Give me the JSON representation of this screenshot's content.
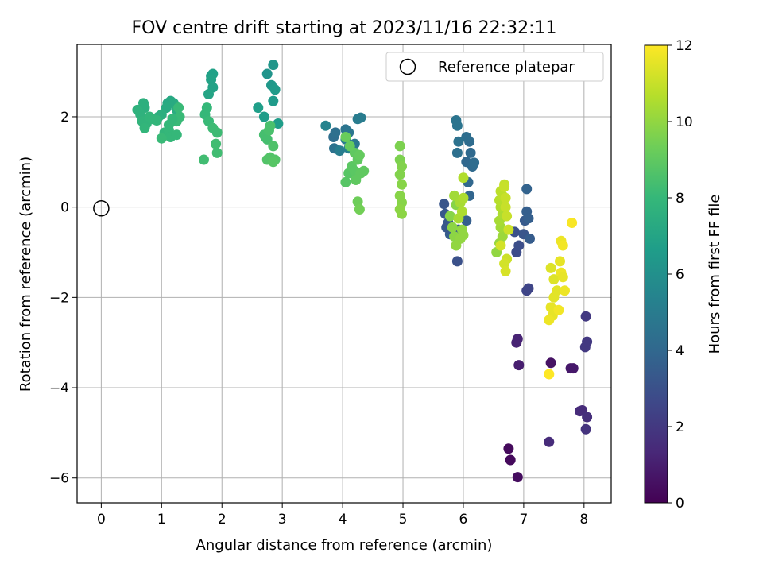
{
  "chart_data": {
    "type": "scatter",
    "title": "FOV centre drift starting at 2023/11/16 22:32:11",
    "xlabel": "Angular distance from reference (arcmin)",
    "ylabel": "Rotation from reference (arcmin)",
    "xlim": [
      -0.4,
      8.45
    ],
    "ylim": [
      -6.55,
      3.6
    ],
    "x_ticks": [
      0,
      1,
      2,
      3,
      4,
      5,
      6,
      7,
      8
    ],
    "x_tick_labels": [
      "0",
      "1",
      "2",
      "3",
      "4",
      "5",
      "6",
      "7",
      "8"
    ],
    "y_ticks": [
      -6,
      -4,
      -2,
      0,
      2
    ],
    "y_tick_labels": [
      "−6",
      "−4",
      "−2",
      "0",
      "2"
    ],
    "grid": true,
    "legend": {
      "position": "top-right",
      "entries": [
        "Reference platepar"
      ]
    },
    "reference_point": {
      "x": 0,
      "y": 0
    },
    "colorbar": {
      "label": "Hours from first FF file",
      "min": 0,
      "max": 12,
      "ticks": [
        0,
        2,
        4,
        6,
        8,
        10,
        12
      ],
      "tick_labels": [
        "0",
        "2",
        "4",
        "6",
        "8",
        "10",
        "12"
      ],
      "colormap": "viridis"
    },
    "colormap_stops": [
      "#440154",
      "#482878",
      "#3e4989",
      "#31688e",
      "#26828e",
      "#1f9e89",
      "#35b779",
      "#6ece58",
      "#b5de2b",
      "#fde725"
    ],
    "points": [
      [
        6.75,
        -5.35,
        0.3
      ],
      [
        6.78,
        -5.6,
        0.3
      ],
      [
        6.9,
        -5.98,
        0.4
      ],
      [
        7.42,
        -5.2,
        1.5
      ],
      [
        7.45,
        -3.45,
        0.6
      ],
      [
        7.78,
        -3.57,
        0.8
      ],
      [
        7.82,
        -3.57,
        0.8
      ],
      [
        6.88,
        -3.0,
        1.2
      ],
      [
        6.9,
        -2.92,
        1.2
      ],
      [
        6.92,
        -3.5,
        1.0
      ],
      [
        7.93,
        -4.52,
        1.5
      ],
      [
        7.97,
        -4.5,
        1.5
      ],
      [
        8.05,
        -4.65,
        1.6
      ],
      [
        8.03,
        -4.92,
        1.8
      ],
      [
        8.02,
        -3.1,
        2.0
      ],
      [
        8.05,
        -2.98,
        2.0
      ],
      [
        8.03,
        -2.42,
        2.0
      ],
      [
        7.05,
        -1.85,
        2.5
      ],
      [
        7.08,
        -1.8,
        2.5
      ],
      [
        6.88,
        -1.0,
        2.8
      ],
      [
        6.92,
        -0.85,
        2.9
      ],
      [
        6.85,
        -0.55,
        3.0
      ],
      [
        7.0,
        -0.6,
        3.2
      ],
      [
        7.02,
        -0.3,
        3.4
      ],
      [
        7.1,
        -0.7,
        3.5
      ],
      [
        7.05,
        -0.1,
        3.6
      ],
      [
        7.08,
        -0.25,
        3.6
      ],
      [
        7.05,
        0.4,
        3.8
      ],
      [
        5.68,
        0.07,
        3.2
      ],
      [
        5.7,
        -0.15,
        3.3
      ],
      [
        5.75,
        -0.35,
        3.4
      ],
      [
        5.78,
        -0.6,
        3.5
      ],
      [
        5.72,
        -0.45,
        3.3
      ],
      [
        5.9,
        -1.2,
        3.0
      ],
      [
        5.92,
        -0.5,
        3.4
      ],
      [
        6.05,
        -0.3,
        3.6
      ],
      [
        6.1,
        0.25,
        3.9
      ],
      [
        6.08,
        0.55,
        4.0
      ],
      [
        6.05,
        1.0,
        4.0
      ],
      [
        6.12,
        1.2,
        4.1
      ],
      [
        6.1,
        1.45,
        4.2
      ],
      [
        6.05,
        1.55,
        4.3
      ],
      [
        6.15,
        0.9,
        4.1
      ],
      [
        6.18,
        0.98,
        4.2
      ],
      [
        5.88,
        1.92,
        4.6
      ],
      [
        5.9,
        1.8,
        4.6
      ],
      [
        5.92,
        1.45,
        4.5
      ],
      [
        5.9,
        1.2,
        4.4
      ],
      [
        3.85,
        1.55,
        4.3
      ],
      [
        3.88,
        1.65,
        4.4
      ],
      [
        3.86,
        1.3,
        4.5
      ],
      [
        4.05,
        1.72,
        4.6
      ],
      [
        4.1,
        1.65,
        4.7
      ],
      [
        4.2,
        1.4,
        4.8
      ],
      [
        4.25,
        1.95,
        5.0
      ],
      [
        4.3,
        1.98,
        5.0
      ],
      [
        4.05,
        1.5,
        5.1
      ],
      [
        4.1,
        1.3,
        5.3
      ],
      [
        3.95,
        1.25,
        5.1
      ],
      [
        3.72,
        1.8,
        5.4
      ],
      [
        2.75,
        2.95,
        6.2
      ],
      [
        2.85,
        3.15,
        6.3
      ],
      [
        2.82,
        2.7,
        6.4
      ],
      [
        2.88,
        2.6,
        6.5
      ],
      [
        2.85,
        2.35,
        6.5
      ],
      [
        2.93,
        1.85,
        6.6
      ],
      [
        2.7,
        2.0,
        6.6
      ],
      [
        2.6,
        2.2,
        6.7
      ],
      [
        1.82,
        2.9,
        6.8
      ],
      [
        1.85,
        2.95,
        6.8
      ],
      [
        1.82,
        2.82,
        6.9
      ],
      [
        1.85,
        2.65,
        6.9
      ],
      [
        1.78,
        2.5,
        7.0
      ],
      [
        1.1,
        2.3,
        7.2
      ],
      [
        1.15,
        2.35,
        7.2
      ],
      [
        1.2,
        2.3,
        7.3
      ],
      [
        1.08,
        2.2,
        7.3
      ],
      [
        1.25,
        2.15,
        7.4
      ],
      [
        1.0,
        2.05,
        7.5
      ],
      [
        0.95,
        2.0,
        7.5
      ],
      [
        0.7,
        2.3,
        7.6
      ],
      [
        0.72,
        2.2,
        7.6
      ],
      [
        0.6,
        2.15,
        7.7
      ],
      [
        0.65,
        2.05,
        7.7
      ],
      [
        0.68,
        1.9,
        7.8
      ],
      [
        0.75,
        1.85,
        7.8
      ],
      [
        0.72,
        1.75,
        7.9
      ],
      [
        0.8,
        2.0,
        7.9
      ],
      [
        0.85,
        1.95,
        7.9
      ],
      [
        0.92,
        1.92,
        7.9
      ],
      [
        1.05,
        1.65,
        7.9
      ],
      [
        1.12,
        1.7,
        8.0
      ],
      [
        1.15,
        1.55,
        8.0
      ],
      [
        1.25,
        1.6,
        8.0
      ],
      [
        1.25,
        1.9,
        8.1
      ],
      [
        1.3,
        2.0,
        8.1
      ],
      [
        1.28,
        2.2,
        8.1
      ],
      [
        1.0,
        1.52,
        8.1
      ],
      [
        1.12,
        1.82,
        8.0
      ],
      [
        1.18,
        1.95,
        8.0
      ],
      [
        1.72,
        2.05,
        8.0
      ],
      [
        1.75,
        2.2,
        8.0
      ],
      [
        1.78,
        1.9,
        8.1
      ],
      [
        1.85,
        1.75,
        8.2
      ],
      [
        1.92,
        1.65,
        8.2
      ],
      [
        1.9,
        1.4,
        8.3
      ],
      [
        1.92,
        1.2,
        8.3
      ],
      [
        1.7,
        1.05,
        8.3
      ],
      [
        2.72,
        1.55,
        8.4
      ],
      [
        2.7,
        1.6,
        8.4
      ],
      [
        2.75,
        1.5,
        8.4
      ],
      [
        2.8,
        1.8,
        8.5
      ],
      [
        2.78,
        1.7,
        8.5
      ],
      [
        2.85,
        1.35,
        8.6
      ],
      [
        2.8,
        1.1,
        8.7
      ],
      [
        2.75,
        1.05,
        8.7
      ],
      [
        2.88,
        1.05,
        8.7
      ],
      [
        2.85,
        1.0,
        8.8
      ],
      [
        4.05,
        0.55,
        8.8
      ],
      [
        4.1,
        0.75,
        8.8
      ],
      [
        4.15,
        0.9,
        8.9
      ],
      [
        4.2,
        0.8,
        8.9
      ],
      [
        4.22,
        0.6,
        9.0
      ],
      [
        4.3,
        0.75,
        9.0
      ],
      [
        4.35,
        0.8,
        9.0
      ],
      [
        4.25,
        1.05,
        9.0
      ],
      [
        4.2,
        1.2,
        9.0
      ],
      [
        4.28,
        1.15,
        9.1
      ],
      [
        4.12,
        1.35,
        9.1
      ],
      [
        4.05,
        1.55,
        9.2
      ],
      [
        4.25,
        0.12,
        9.3
      ],
      [
        4.28,
        -0.05,
        9.4
      ],
      [
        4.95,
        1.35,
        9.6
      ],
      [
        4.95,
        1.05,
        9.6
      ],
      [
        4.98,
        0.9,
        9.7
      ],
      [
        4.95,
        0.72,
        9.7
      ],
      [
        4.98,
        0.5,
        9.8
      ],
      [
        4.95,
        0.25,
        9.8
      ],
      [
        4.98,
        0.1,
        9.8
      ],
      [
        4.95,
        -0.05,
        9.9
      ],
      [
        4.98,
        -0.15,
        9.9
      ],
      [
        5.88,
        0.05,
        9.8
      ],
      [
        5.78,
        -0.2,
        9.8
      ],
      [
        5.82,
        -0.45,
        9.9
      ],
      [
        5.85,
        -0.65,
        9.9
      ],
      [
        5.88,
        -0.85,
        10.0
      ],
      [
        5.95,
        -0.7,
        10.0
      ],
      [
        5.98,
        -0.5,
        10.0
      ],
      [
        6.0,
        -0.62,
        10.0
      ],
      [
        5.85,
        0.25,
        10.3
      ],
      [
        5.95,
        0.1,
        10.4
      ],
      [
        6.0,
        0.2,
        10.5
      ],
      [
        6.0,
        0.65,
        10.6
      ],
      [
        5.92,
        -0.25,
        10.4
      ],
      [
        5.98,
        -0.1,
        10.5
      ],
      [
        6.55,
        -1.0,
        10.0
      ],
      [
        6.6,
        -0.8,
        10.1
      ],
      [
        6.65,
        -0.65,
        10.2
      ],
      [
        6.62,
        -0.45,
        10.3
      ],
      [
        6.6,
        -0.3,
        10.4
      ],
      [
        6.65,
        -0.15,
        10.5
      ],
      [
        6.62,
        0.0,
        10.6
      ],
      [
        6.6,
        0.15,
        10.7
      ],
      [
        6.65,
        0.25,
        10.8
      ],
      [
        6.62,
        0.35,
        10.8
      ],
      [
        6.68,
        0.5,
        10.9
      ],
      [
        6.68,
        0.45,
        11.0
      ],
      [
        6.7,
        0.2,
        11.0
      ],
      [
        6.7,
        0.0,
        11.0
      ],
      [
        6.72,
        -0.2,
        11.0
      ],
      [
        6.75,
        -0.5,
        11.1
      ],
      [
        6.72,
        -1.15,
        11.1
      ],
      [
        6.68,
        -1.25,
        11.2
      ],
      [
        6.7,
        -1.42,
        11.3
      ],
      [
        6.62,
        -0.85,
        11.2
      ],
      [
        7.45,
        -1.35,
        11.4
      ],
      [
        7.5,
        -1.6,
        11.4
      ],
      [
        7.55,
        -1.85,
        11.5
      ],
      [
        7.5,
        -2.0,
        11.5
      ],
      [
        7.45,
        -2.22,
        11.6
      ],
      [
        7.48,
        -2.4,
        11.6
      ],
      [
        7.42,
        -2.5,
        11.7
      ],
      [
        7.6,
        -1.2,
        11.6
      ],
      [
        7.62,
        -1.45,
        11.7
      ],
      [
        7.58,
        -2.28,
        11.8
      ],
      [
        7.65,
        -1.55,
        11.6
      ],
      [
        7.68,
        -1.85,
        11.7
      ],
      [
        7.62,
        -0.75,
        11.7
      ],
      [
        7.65,
        -0.85,
        11.8
      ],
      [
        7.8,
        -0.35,
        11.9
      ],
      [
        7.42,
        -3.7,
        12.0
      ]
    ]
  }
}
